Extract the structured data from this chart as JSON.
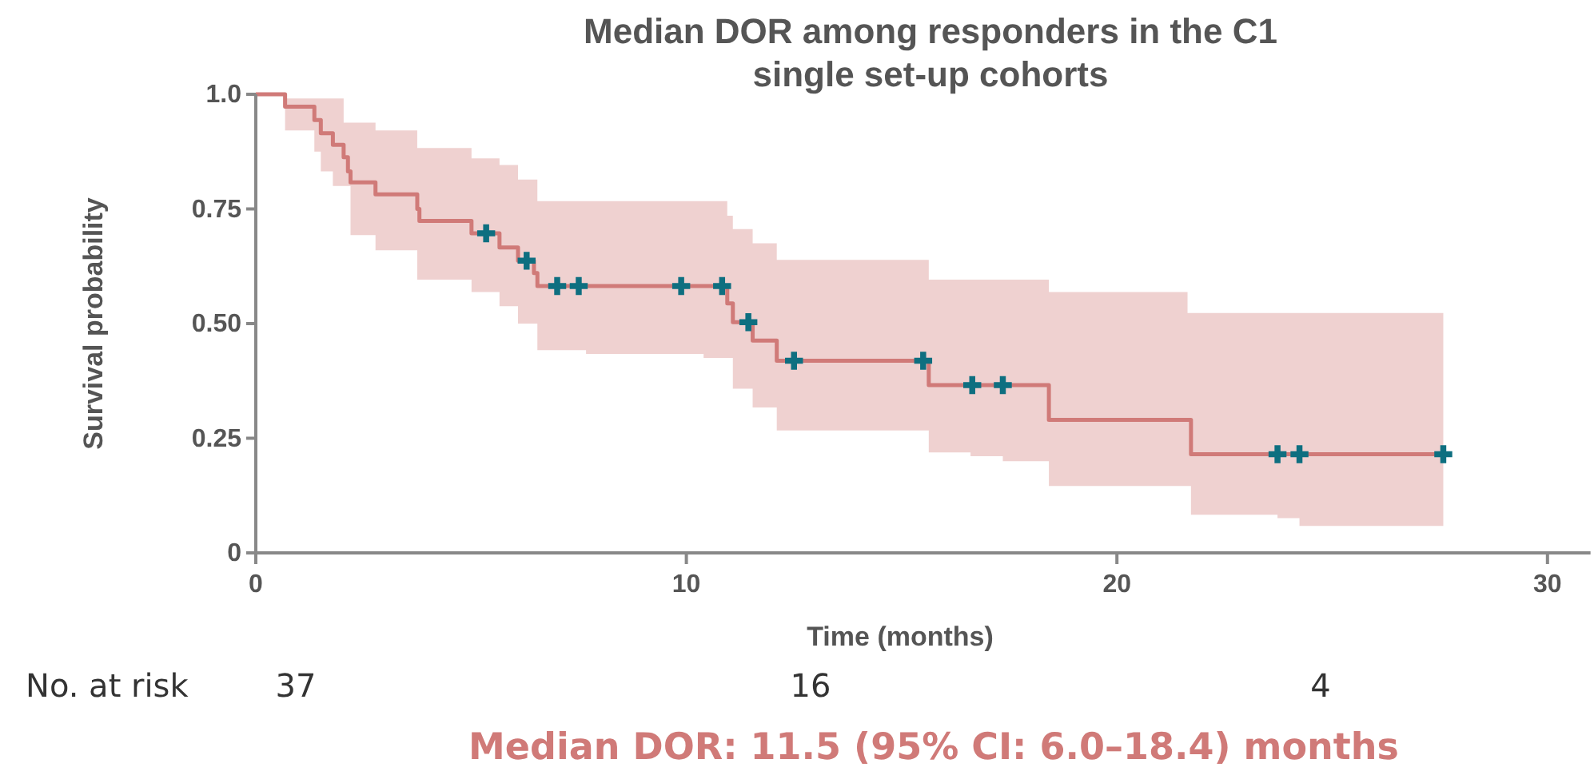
{
  "chart_data": {
    "type": "step",
    "title": "Median DOR among responders in the C1 single set-up cohorts",
    "xlabel": "Time (months)",
    "ylabel": "Survival probability",
    "xlim": [
      0,
      31
    ],
    "xticks": [
      0,
      10,
      20,
      30
    ],
    "ylim": [
      0,
      1
    ],
    "yticks": [
      0,
      0.25,
      {
        "value": 0.5,
        "label": "0.50"
      },
      0.75,
      {
        "value": 1,
        "label": "1.0"
      }
    ],
    "series": [
      {
        "color": "#d07a78",
        "x": [
          0,
          0.68,
          1.36,
          1.51,
          1.79,
          2.04,
          2.14,
          2.2,
          2.78,
          3.75,
          3.8,
          5.01,
          5.66,
          6.09,
          6.46,
          6.54,
          7.67,
          10.4,
          10.95,
          11.08,
          11.54,
          12.1,
          15.63,
          16.6,
          17.35,
          18.42,
          21.64,
          21.72,
          23.73,
          24.24,
          27.58
        ],
        "values": [
          1,
          0.973,
          0.944,
          0.915,
          0.89,
          0.863,
          0.832,
          0.808,
          0.782,
          0.75,
          0.724,
          0.697,
          0.666,
          0.637,
          0.61,
          0.582,
          0.582,
          0.582,
          0.544,
          0.503,
          0.463,
          0.419,
          0.366,
          0.366,
          0.366,
          0.29,
          0.29,
          0.215,
          0.215,
          0.215,
          0.215
        ],
        "lower": [
          1,
          0.921,
          0.875,
          0.832,
          0.8,
          0.8,
          0.8,
          0.693,
          0.66,
          0.596,
          0.596,
          0.569,
          0.538,
          0.5,
          0.5,
          0.442,
          0.434,
          0.425,
          0.425,
          0.358,
          0.317,
          0.267,
          0.219,
          0.211,
          0.2,
          0.146,
          0.146,
          0.083,
          0.076,
          0.059,
          0.059
        ],
        "upper": [
          1,
          0.991,
          0.991,
          0.991,
          0.991,
          0.938,
          0.938,
          0.938,
          0.921,
          0.883,
          0.883,
          0.86,
          0.846,
          0.814,
          0.814,
          0.767,
          0.767,
          0.767,
          0.735,
          0.706,
          0.675,
          0.639,
          0.596,
          0.596,
          0.596,
          0.569,
          0.523,
          0.523,
          0.523,
          0.523,
          0.523
        ]
      },
      {
        "type": "scatter",
        "color": "#0e6f80",
        "marker": "cross",
        "x": [
          5.35,
          6.29,
          7.0,
          7.5,
          9.88,
          10.83,
          11.44,
          12.5,
          15.5,
          16.64,
          17.35,
          23.73,
          24.24,
          27.58
        ],
        "values": [
          0.697,
          0.637,
          0.582,
          0.582,
          0.582,
          0.582,
          0.503,
          0.419,
          0.419,
          0.366,
          0.366,
          0.215,
          0.215,
          0.215
        ]
      }
    ],
    "annotations": [
      "No. at risk",
      "37",
      "16",
      "4",
      "Median DOR: 11.5 (95% CI: 6.0–18.4) months"
    ]
  }
}
